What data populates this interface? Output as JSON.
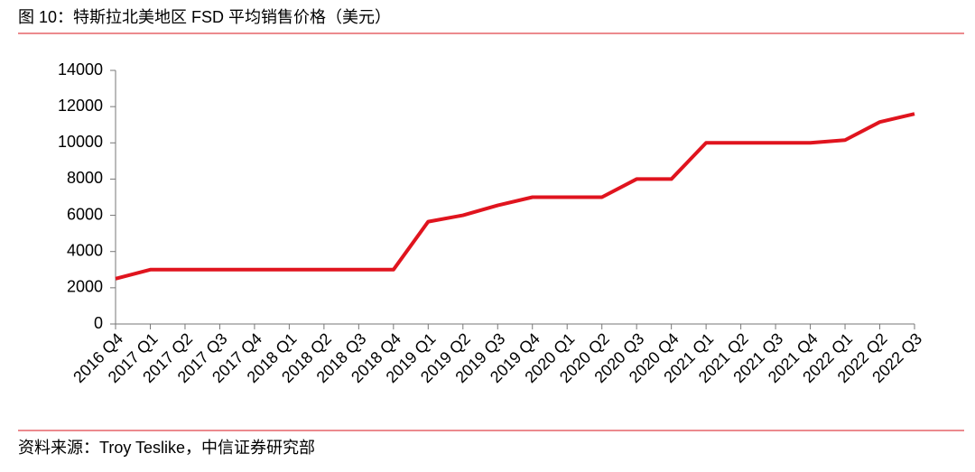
{
  "chart_data": {
    "type": "line",
    "title": "图 10：特斯拉北美地区 FSD 平均销售价格（美元）",
    "source": "资料来源：Troy Teslike，中信证券研究部",
    "categories": [
      "2016 Q4",
      "2017 Q1",
      "2017 Q2",
      "2017 Q3",
      "2017 Q4",
      "2018 Q1",
      "2018 Q2",
      "2018 Q3",
      "2018 Q4",
      "2019 Q1",
      "2019 Q2",
      "2019 Q3",
      "2019 Q4",
      "2020 Q1",
      "2020 Q2",
      "2020 Q3",
      "2020 Q4",
      "2021 Q1",
      "2021 Q2",
      "2021 Q3",
      "2021 Q4",
      "2022 Q1",
      "2022 Q2",
      "2022 Q3"
    ],
    "values": [
      2500,
      3000,
      3000,
      3000,
      3000,
      3000,
      3000,
      3000,
      3000,
      5650,
      6000,
      6550,
      7000,
      7000,
      7000,
      8000,
      8000,
      10000,
      10000,
      10000,
      10000,
      10150,
      11150,
      11600
    ],
    "color": "#e0141e",
    "ylim": [
      0,
      14000
    ],
    "yticks": [
      0,
      2000,
      4000,
      6000,
      8000,
      10000,
      12000,
      14000
    ],
    "grid": false
  }
}
